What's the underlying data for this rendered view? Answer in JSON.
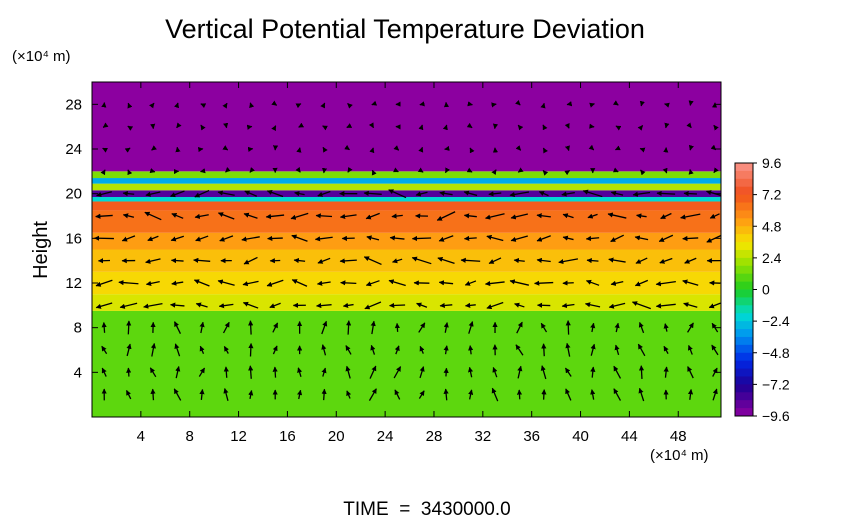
{
  "chart_data": {
    "type": "heatmap",
    "title": "Vertical Potential Temperature Deviation",
    "xlabel": "",
    "ylabel": "Height",
    "x_unit_label": "(×10⁴ m)",
    "y_unit_label": "(×10⁴ m)",
    "footer": "TIME  =  3430000.0",
    "xlim": [
      0,
      51.5
    ],
    "ylim": [
      0,
      30
    ],
    "xticks": [
      4,
      8,
      12,
      16,
      20,
      24,
      28,
      32,
      36,
      40,
      44,
      48
    ],
    "yticks": [
      4,
      8,
      12,
      16,
      20,
      24,
      28
    ],
    "colorbar": {
      "ticks": [
        9.6,
        7.2,
        4.8,
        2.4,
        0,
        -2.4,
        -4.8,
        -7.2,
        -9.6
      ],
      "range": [
        -9.6,
        9.6
      ]
    },
    "bands": [
      {
        "y0": 0,
        "y1": 9.5,
        "value": 1.0
      },
      {
        "y0": 9.5,
        "y1": 11,
        "value": 3.0
      },
      {
        "y0": 11,
        "y1": 13,
        "value": 3.8
      },
      {
        "y0": 13,
        "y1": 15,
        "value": 4.4
      },
      {
        "y0": 15,
        "y1": 16.5,
        "value": 5.2
      },
      {
        "y0": 16.5,
        "y1": 18.5,
        "value": 6.4
      },
      {
        "y0": 18.5,
        "y1": 19.3,
        "value": 7.0
      },
      {
        "y0": 19.3,
        "y1": 19.7,
        "value": -2.0
      },
      {
        "y0": 19.7,
        "y1": 20.3,
        "value": -8.4
      },
      {
        "y0": 20.3,
        "y1": 20.9,
        "value": 2.4
      },
      {
        "y0": 20.9,
        "y1": 21.4,
        "value": -3.0
      },
      {
        "y0": 21.4,
        "y1": 22.0,
        "value": 1.5
      },
      {
        "y0": 22.0,
        "y1": 30,
        "value": -9.6
      }
    ],
    "vector_rows": [
      2,
      4,
      6,
      8,
      10,
      12,
      14,
      16,
      18,
      20,
      22,
      24,
      26,
      28
    ],
    "vector_cols_step": 2
  }
}
